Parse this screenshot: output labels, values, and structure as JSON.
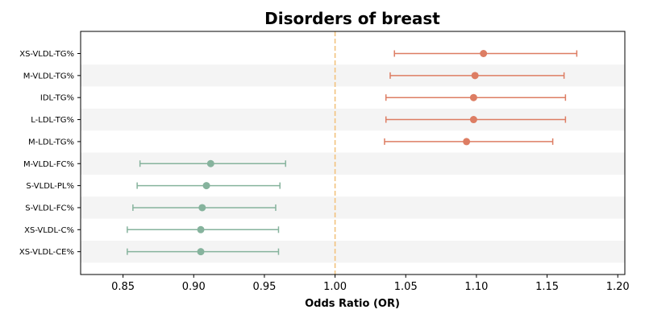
{
  "chart_data": {
    "type": "forest",
    "title": "Disorders of breast",
    "xlabel": "Odds Ratio (OR)",
    "xlim": [
      0.82,
      1.205
    ],
    "xticks": [
      0.85,
      0.9,
      0.95,
      1.0,
      1.05,
      1.1,
      1.15,
      1.2
    ],
    "xtick_labels": [
      "0.85",
      "0.90",
      "0.95",
      "1.00",
      "1.05",
      "1.10",
      "1.15",
      "1.20"
    ],
    "reference_line": 1.0,
    "colors": {
      "risk": "#dd7d63",
      "protective": "#86b39d",
      "reference": "#f2c27e",
      "band": "#f4f4f4",
      "axis": "#000000"
    },
    "rows": [
      {
        "label": "XS-VLDL-TG%",
        "or": 1.105,
        "lower": 1.042,
        "upper": 1.171,
        "group": "risk"
      },
      {
        "label": "M-VLDL-TG%",
        "or": 1.099,
        "lower": 1.039,
        "upper": 1.162,
        "group": "risk"
      },
      {
        "label": "IDL-TG%",
        "or": 1.098,
        "lower": 1.036,
        "upper": 1.163,
        "group": "risk"
      },
      {
        "label": "L-LDL-TG%",
        "or": 1.098,
        "lower": 1.036,
        "upper": 1.163,
        "group": "risk"
      },
      {
        "label": "M-LDL-TG%",
        "or": 1.093,
        "lower": 1.035,
        "upper": 1.154,
        "group": "risk"
      },
      {
        "label": "M-VLDL-FC%",
        "or": 0.912,
        "lower": 0.862,
        "upper": 0.965,
        "group": "protective"
      },
      {
        "label": "S-VLDL-PL%",
        "or": 0.909,
        "lower": 0.86,
        "upper": 0.961,
        "group": "protective"
      },
      {
        "label": "S-VLDL-FC%",
        "or": 0.906,
        "lower": 0.857,
        "upper": 0.958,
        "group": "protective"
      },
      {
        "label": "XS-VLDL-C%",
        "or": 0.905,
        "lower": 0.853,
        "upper": 0.96,
        "group": "protective"
      },
      {
        "label": "XS-VLDL-CE%",
        "or": 0.905,
        "lower": 0.853,
        "upper": 0.96,
        "group": "protective"
      }
    ]
  }
}
